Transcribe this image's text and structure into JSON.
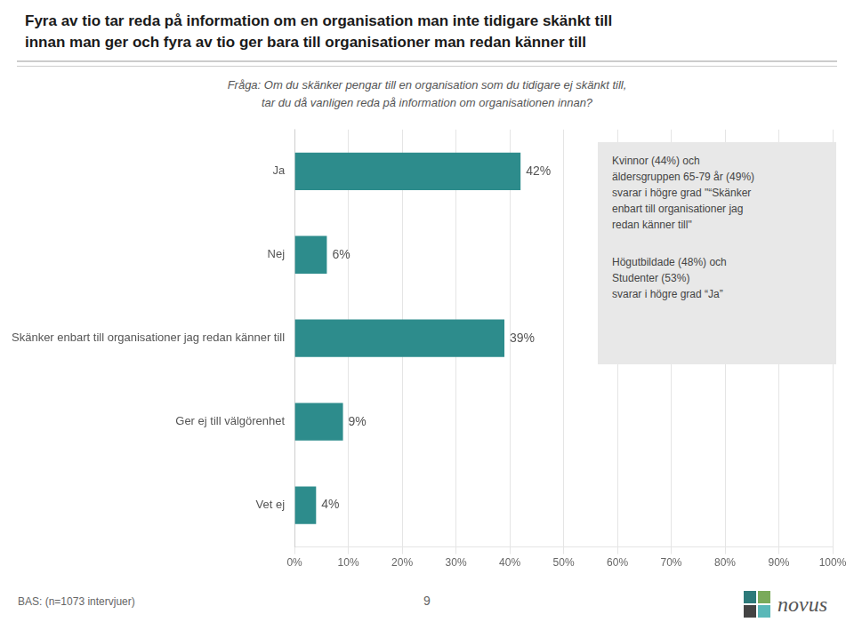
{
  "chart_data": {
    "type": "bar",
    "orientation": "horizontal",
    "title": [
      "Fyra av tio tar reda på information om en organisation man inte tidigare skänkt till",
      "innan man ger och fyra av tio ger bara till organisationer man redan känner till"
    ],
    "subtitle": "Fråga: Om du skänker pengar till en organisation som du tidigare ej skänkt till,\ntar du då vanligen reda på information om organisationen innan?",
    "categories": [
      "Ja",
      "Nej",
      "Skänker enbart till organisationer jag redan känner till",
      "Ger ej till välgörenhet",
      "Vet ej"
    ],
    "values": [
      42,
      6,
      39,
      9,
      4
    ],
    "value_labels": [
      "42%",
      "6%",
      "39%",
      "9%",
      "4%"
    ],
    "data_labels": true,
    "color": "#2d8c8c",
    "xlim": [
      0,
      100
    ],
    "xticks": [
      {
        "value": 0,
        "label": "0%"
      },
      {
        "value": 10,
        "label": "10%"
      },
      {
        "value": 20,
        "label": "20%"
      },
      {
        "value": 30,
        "label": "30%"
      },
      {
        "value": 40,
        "label": "40%"
      },
      {
        "value": 50,
        "label": "50%"
      },
      {
        "value": 60,
        "label": "60%"
      },
      {
        "value": 70,
        "label": "70%"
      },
      {
        "value": 80,
        "label": "80%"
      },
      {
        "value": 90,
        "label": "90%"
      },
      {
        "value": 100,
        "label": "100%"
      }
    ],
    "grid": true,
    "annotations": [
      "Kvinnor (44%) och\näldersgruppen 65-79 år (49%)\nsvarar i högre grad \"“Skänker\nenbart till organisationer jag\nredan känner till\"",
      "Högutbildade (48%) och\nStudenter (53%)\nsvarar i högre grad “Ja”",
      "BAS: (n=1073 intervjuer)",
      "9",
      "novus"
    ]
  }
}
